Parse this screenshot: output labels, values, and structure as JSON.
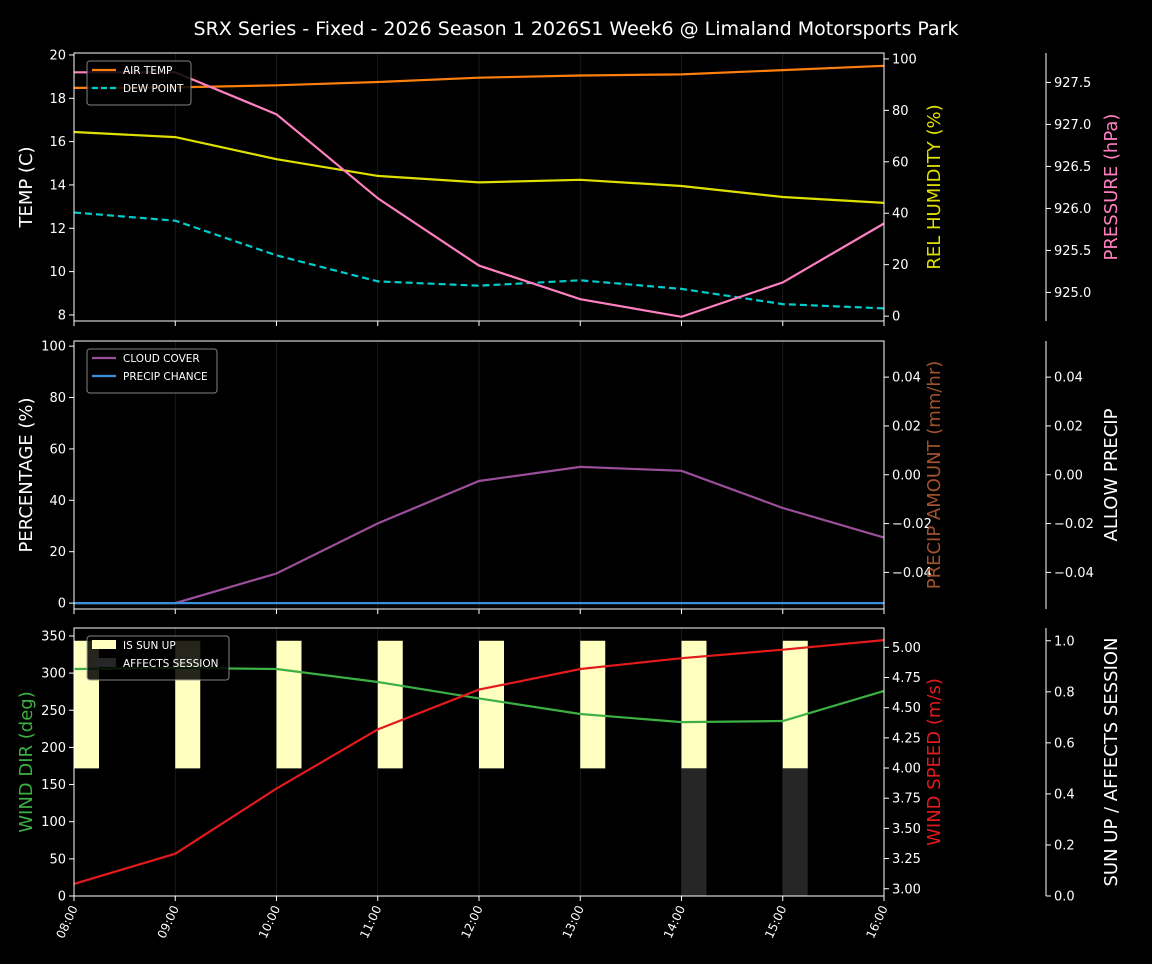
{
  "title": "SRX Series - Fixed - 2026 Season 1 2026S1 Week6 @ Limaland Motorsports Park",
  "chart_data": [
    {
      "type": "line",
      "x": [
        "08:00",
        "09:00",
        "10:00",
        "11:00",
        "12:00",
        "13:00",
        "14:00",
        "15:00",
        "16:00"
      ],
      "axes": [
        {
          "label": "TEMP (C)",
          "color": "#ffffff",
          "side": "left",
          "ylim": [
            7.72,
            20.09
          ],
          "ticks": [
            8,
            10,
            12,
            14,
            16,
            18,
            20
          ],
          "tick_labels": [
            "8",
            "10",
            "12",
            "14",
            "16",
            "18",
            "20"
          ]
        },
        {
          "label": "REL HUMIDITY (%)",
          "color": "#e0e000",
          "side": "right",
          "ylim": [
            -1.9,
            102.3
          ],
          "ticks": [
            0,
            20,
            40,
            60,
            80,
            100
          ],
          "tick_labels": [
            "0",
            "20",
            "40",
            "60",
            "80",
            "100"
          ]
        },
        {
          "label": "PRESSURE (hPa)",
          "color": "#ff80c0",
          "side": "far-right",
          "ylim": [
            924.66,
            927.85
          ],
          "ticks": [
            925.0,
            925.5,
            926.0,
            926.5,
            927.0,
            927.5
          ],
          "tick_labels": [
            "925.0",
            "925.5",
            "926.0",
            "926.5",
            "927.0",
            "927.5"
          ]
        }
      ],
      "series": [
        {
          "name": "AIR TEMP",
          "axis": 0,
          "color": "#ff7f0e",
          "dash": false,
          "legend": true,
          "values": [
            18.48,
            18.5,
            18.6,
            18.75,
            18.95,
            19.05,
            19.1,
            19.3,
            19.5
          ]
        },
        {
          "name": "DEW POINT",
          "axis": 0,
          "color": "#00cccc",
          "dash": true,
          "legend": true,
          "values": [
            12.73,
            12.35,
            10.75,
            9.55,
            9.35,
            9.6,
            9.2,
            8.5,
            8.3
          ]
        },
        {
          "axis": 1,
          "color": "#e0e000",
          "dash": false,
          "legend": false,
          "values": [
            71.6,
            69.6,
            61,
            54.5,
            52,
            53,
            50.6,
            46.3,
            44
          ]
        },
        {
          "axis": 2,
          "color": "#ff80c0",
          "dash": false,
          "legend": false,
          "values": [
            927.62,
            927.62,
            927.12,
            926.12,
            925.32,
            924.92,
            924.71,
            925.12,
            925.82
          ]
        }
      ],
      "legend_placement": "upper-left",
      "grid": "vertical"
    },
    {
      "type": "line",
      "x": [
        "08:00",
        "09:00",
        "10:00",
        "11:00",
        "12:00",
        "13:00",
        "14:00",
        "15:00",
        "16:00"
      ],
      "axes": [
        {
          "label": "PERCENTAGE (%)",
          "color": "#ffffff",
          "side": "left",
          "ylim": [
            -2.3,
            102
          ],
          "ticks": [
            0,
            20,
            40,
            60,
            80,
            100
          ],
          "tick_labels": [
            "0",
            "20",
            "40",
            "60",
            "80",
            "100"
          ]
        },
        {
          "label": "PRECIP AMOUNT (mm/hr)",
          "color": "#a0522d",
          "side": "right",
          "ylim": [
            -0.055,
            0.0548
          ],
          "ticks": [
            -0.04,
            -0.02,
            0,
            0.02,
            0.04
          ],
          "tick_labels": [
            "−0.04",
            "−0.02",
            "0.00",
            "0.02",
            "0.04"
          ]
        },
        {
          "label": "ALLOW PRECIP",
          "color": "#ffffff",
          "side": "far-right",
          "ylim": [
            -0.055,
            0.0548
          ],
          "ticks": [
            -0.04,
            -0.02,
            0,
            0.02,
            0.04
          ],
          "tick_labels": [
            "−0.04",
            "−0.02",
            "0.00",
            "0.02",
            "0.04"
          ]
        }
      ],
      "series": [
        {
          "name": "CLOUD COVER",
          "axis": 0,
          "color": "#9b4f9b",
          "dash": false,
          "legend": true,
          "values": [
            0,
            0,
            11.5,
            31,
            47.5,
            53,
            51.5,
            37,
            25.5
          ]
        },
        {
          "name": "PRECIP CHANCE",
          "axis": 0,
          "color": "#3a8fd8",
          "dash": false,
          "legend": true,
          "values": [
            0,
            0,
            0,
            0,
            0,
            0,
            0,
            0,
            0
          ]
        }
      ],
      "legend_placement": "upper-left",
      "grid": "vertical"
    },
    {
      "type": "line",
      "x": [
        "08:00",
        "09:00",
        "10:00",
        "11:00",
        "12:00",
        "13:00",
        "14:00",
        "15:00",
        "16:00"
      ],
      "axes": [
        {
          "label": "WIND DIR (deg)",
          "color": "#3cb043",
          "side": "left",
          "ylim": [
            0,
            360.7
          ],
          "ticks": [
            0,
            50,
            100,
            150,
            200,
            250,
            300,
            350
          ],
          "tick_labels": [
            "0",
            "50",
            "100",
            "150",
            "200",
            "250",
            "300",
            "350"
          ]
        },
        {
          "label": "WIND SPEED (m/s)",
          "color": "#e31a1c",
          "side": "right",
          "ylim": [
            2.94,
            5.16
          ],
          "ticks": [
            3,
            3.25,
            3.5,
            3.75,
            4,
            4.25,
            4.5,
            4.75,
            5
          ],
          "tick_labels": [
            "3.00",
            "3.25",
            "3.50",
            "3.75",
            "4.00",
            "4.25",
            "4.50",
            "4.75",
            "5.00"
          ]
        },
        {
          "label": "SUN UP / AFFECTS SESSION",
          "color": "#ffffff",
          "side": "far-right",
          "ylim": [
            0,
            1.05
          ],
          "ticks": [
            0,
            0.2,
            0.4,
            0.6,
            0.8,
            1.0
          ],
          "tick_labels": [
            "0.0",
            "0.2",
            "0.4",
            "0.6",
            "0.8",
            "1.0"
          ]
        }
      ],
      "bars": [
        {
          "name": "IS SUN UP",
          "axis": 2,
          "color": "#ffffc0",
          "base": 0.5,
          "values": [
            1,
            1,
            1,
            1,
            1,
            1,
            1,
            1,
            0
          ]
        },
        {
          "name": "AFFECTS SESSION",
          "axis": 2,
          "color": "#262626",
          "base": 0,
          "values": [
            0,
            0,
            0,
            0,
            0,
            0,
            0.5,
            0.5,
            0
          ]
        }
      ],
      "series": [
        {
          "axis": 0,
          "color": "#3cb043",
          "dash": false,
          "legend": false,
          "values": [
            305.5,
            307,
            305.5,
            288,
            266,
            245,
            234,
            235.5,
            276
          ]
        },
        {
          "axis": 1,
          "color": "#e31a1c",
          "dash": false,
          "legend": false,
          "values": [
            3.04,
            3.29,
            3.83,
            4.32,
            4.65,
            4.82,
            4.91,
            4.98,
            5.06
          ]
        }
      ],
      "legend_placement": "upper-left",
      "grid": "vertical"
    }
  ]
}
